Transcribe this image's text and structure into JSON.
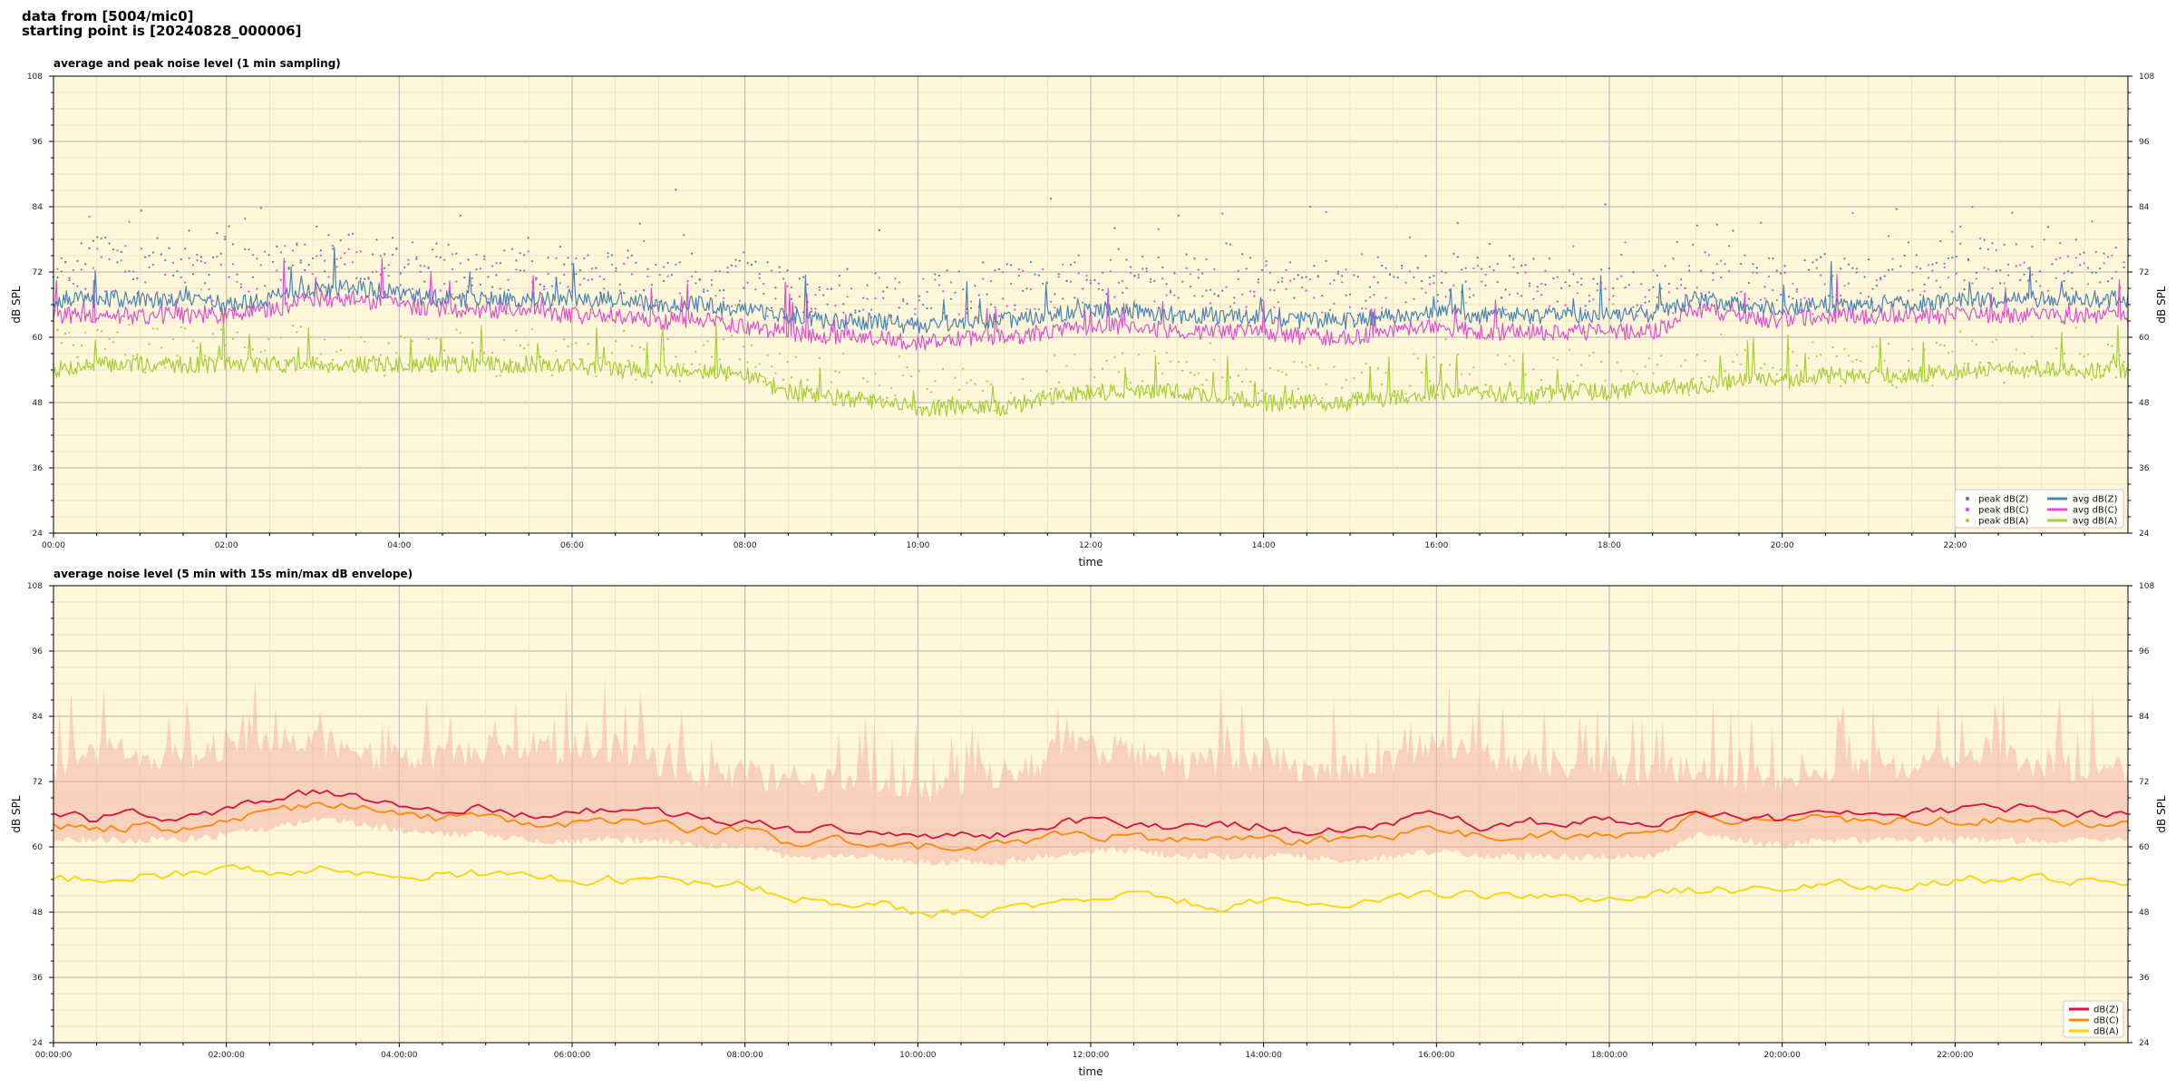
{
  "header": {
    "line1": "data from [5004/mic0]",
    "line2": "starting point is [20240828_000006]"
  },
  "colors": {
    "plot_bg": "#fff7d9",
    "grid_major": "#b3b3b3",
    "grid_minor": "#e9dfbf",
    "dBZ": "#4a84b6",
    "dBC": "#e34fd0",
    "dBA": "#a6cf38",
    "dBZ_5min": "#d6123f",
    "dBC_5min": "#ff8a00",
    "dBA_5min": "#ffd400",
    "envelope": "#f4b2a4"
  },
  "chart_data": [
    {
      "type": "line",
      "title": "average and peak noise level (1 min sampling)",
      "xlabel": "time",
      "ylabel": "dB SPL",
      "y2label": "dB SPL",
      "xlim": [
        0,
        24
      ],
      "ylim": [
        24,
        108
      ],
      "yticks": [
        24,
        36,
        48,
        60,
        72,
        84,
        96,
        108
      ],
      "xticks": [
        "00:00",
        "02:00",
        "04:00",
        "06:00",
        "08:00",
        "10:00",
        "12:00",
        "14:00",
        "16:00",
        "18:00",
        "20:00",
        "22:00"
      ],
      "grid": true,
      "legend_position": "bottom-right",
      "legend": [
        "peak dB(Z)",
        "peak dB(C)",
        "peak dB(A)",
        "avg dB(Z)",
        "avg dB(C)",
        "avg dB(A)"
      ],
      "x": [
        0,
        0.5,
        1,
        1.5,
        2,
        2.5,
        3,
        3.5,
        4,
        4.5,
        5,
        5.5,
        6,
        6.5,
        7,
        7.5,
        8,
        8.5,
        9,
        9.5,
        10,
        10.5,
        11,
        11.5,
        12,
        12.5,
        13,
        13.5,
        14,
        14.5,
        15,
        15.5,
        16,
        16.5,
        17,
        17.5,
        18,
        18.5,
        19,
        19.5,
        20,
        20.5,
        21,
        21.5,
        22,
        22.5,
        23,
        23.5,
        24
      ],
      "series": [
        {
          "name": "avg dB(Z)",
          "kind": "line",
          "values": [
            67,
            67,
            67,
            67,
            66,
            67,
            69,
            69,
            68,
            67,
            67,
            67,
            67,
            67,
            66,
            66,
            65,
            64,
            63,
            63,
            62,
            63,
            63,
            64,
            65,
            65,
            64,
            64,
            64,
            63,
            63,
            64,
            65,
            64,
            64,
            64,
            64,
            64,
            67,
            66,
            65,
            66,
            66,
            66,
            67,
            67,
            67,
            67,
            67
          ]
        },
        {
          "name": "avg dB(C)",
          "kind": "line",
          "values": [
            64,
            64,
            64,
            64,
            64,
            65,
            67,
            67,
            66,
            65,
            65,
            65,
            64,
            64,
            63,
            63,
            62,
            61,
            60,
            60,
            59,
            60,
            60,
            61,
            62,
            62,
            61,
            61,
            61,
            60,
            60,
            61,
            62,
            61,
            61,
            61,
            61,
            61,
            65,
            64,
            63,
            64,
            64,
            64,
            64,
            64,
            64,
            64,
            64
          ]
        },
        {
          "name": "avg dB(A)",
          "kind": "line",
          "values": [
            54,
            55,
            55,
            55,
            55,
            55,
            55,
            55,
            55,
            55,
            55,
            55,
            55,
            54,
            54,
            54,
            53,
            50,
            49,
            48,
            47,
            47,
            47,
            49,
            50,
            50,
            50,
            49,
            48,
            48,
            48,
            49,
            50,
            50,
            49,
            50,
            50,
            51,
            51,
            52,
            52,
            53,
            53,
            53,
            54,
            54,
            54,
            54,
            54
          ]
        },
        {
          "name": "peak dB(Z)",
          "kind": "scatter",
          "values": [
            73,
            75,
            74,
            73,
            73,
            74,
            76,
            75,
            74,
            73,
            72,
            73,
            72,
            73,
            71,
            71,
            70,
            69,
            68,
            69,
            67,
            69,
            70,
            71,
            72,
            72,
            71,
            71,
            71,
            70,
            69,
            70,
            72,
            71,
            71,
            70,
            70,
            70,
            72,
            71,
            70,
            71,
            72,
            72,
            73,
            74,
            73,
            74,
            73
          ]
        },
        {
          "name": "peak dB(C)",
          "kind": "scatter",
          "values": [
            71,
            73,
            72,
            71,
            71,
            72,
            74,
            73,
            72,
            71,
            71,
            71,
            70,
            71,
            69,
            69,
            68,
            67,
            66,
            67,
            65,
            67,
            68,
            69,
            70,
            70,
            69,
            69,
            69,
            68,
            67,
            68,
            70,
            69,
            69,
            68,
            68,
            68,
            70,
            69,
            68,
            69,
            70,
            70,
            71,
            72,
            71,
            72,
            71
          ]
        },
        {
          "name": "peak dB(A)",
          "kind": "scatter",
          "values": [
            57,
            58,
            58,
            58,
            57,
            58,
            58,
            57,
            57,
            57,
            57,
            57,
            57,
            57,
            56,
            56,
            55,
            53,
            52,
            51,
            50,
            50,
            50,
            52,
            53,
            53,
            53,
            52,
            51,
            51,
            51,
            52,
            53,
            53,
            52,
            53,
            53,
            53,
            54,
            54,
            55,
            55,
            55,
            55,
            56,
            56,
            56,
            56,
            56
          ]
        }
      ]
    },
    {
      "type": "line",
      "title": "average noise level (5 min with 15s min/max dB envelope)",
      "xlabel": "time",
      "ylabel": "dB SPL",
      "y2label": "dB SPL",
      "xlim": [
        0,
        24
      ],
      "ylim": [
        24,
        108
      ],
      "yticks": [
        24,
        36,
        48,
        60,
        72,
        84,
        96,
        108
      ],
      "xticks": [
        "00:00:00",
        "02:00:00",
        "04:00:00",
        "06:00:00",
        "08:00:00",
        "10:00:00",
        "12:00:00",
        "14:00:00",
        "16:00:00",
        "18:00:00",
        "20:00:00",
        "22:00:00"
      ],
      "grid": true,
      "legend_position": "bottom-right",
      "legend": [
        "dB(Z)",
        "dB(C)",
        "dB(A)"
      ],
      "x": [
        0,
        0.5,
        1,
        1.5,
        2,
        2.5,
        3,
        3.5,
        4,
        4.5,
        5,
        5.5,
        6,
        6.5,
        7,
        7.5,
        8,
        8.5,
        9,
        9.5,
        10,
        10.5,
        11,
        11.5,
        12,
        12.5,
        13,
        13.5,
        14,
        14.5,
        15,
        15.5,
        16,
        16.5,
        17,
        17.5,
        18,
        18.5,
        19,
        19.5,
        20,
        20.5,
        21,
        21.5,
        22,
        22.5,
        23,
        23.5,
        24
      ],
      "series": [
        {
          "name": "dB(Z)",
          "kind": "line",
          "values": [
            66,
            65,
            66,
            65,
            67,
            68,
            70,
            69,
            68,
            67,
            67,
            66,
            66,
            67,
            66,
            65,
            65,
            63,
            63,
            63,
            62,
            62,
            62,
            64,
            65,
            64,
            64,
            64,
            64,
            63,
            63,
            64,
            66,
            64,
            65,
            64,
            65,
            64,
            67,
            66,
            65,
            66,
            66,
            66,
            67,
            67,
            67,
            66,
            66
          ]
        },
        {
          "name": "dB(C)",
          "kind": "line",
          "values": [
            64,
            63,
            64,
            63,
            65,
            66,
            68,
            67,
            66,
            65,
            65,
            64,
            64,
            65,
            64,
            63,
            63,
            61,
            61,
            61,
            60,
            60,
            60,
            62,
            62,
            62,
            61,
            62,
            61,
            61,
            61,
            62,
            63,
            62,
            62,
            62,
            62,
            62,
            66,
            65,
            64,
            65,
            65,
            65,
            65,
            65,
            65,
            64,
            64
          ]
        },
        {
          "name": "dB(A)",
          "kind": "line",
          "values": [
            54,
            54,
            55,
            55,
            56,
            55,
            56,
            55,
            55,
            55,
            55,
            55,
            54,
            54,
            54,
            53,
            53,
            51,
            50,
            50,
            48,
            48,
            48,
            50,
            50,
            51,
            50,
            49,
            50,
            50,
            49,
            50,
            51,
            51,
            51,
            50,
            51,
            51,
            52,
            52,
            52,
            53,
            53,
            53,
            54,
            54,
            54,
            54,
            54
          ]
        },
        {
          "name": "envelope max",
          "kind": "band",
          "values": [
            74,
            78,
            77,
            76,
            79,
            78,
            80,
            77,
            76,
            77,
            78,
            78,
            77,
            78,
            75,
            74,
            73,
            73,
            72,
            73,
            70,
            72,
            74,
            76,
            78,
            77,
            75,
            76,
            77,
            74,
            74,
            76,
            79,
            77,
            76,
            75,
            74,
            74,
            74,
            73,
            72,
            73,
            74,
            74,
            76,
            77,
            74,
            75,
            74
          ]
        },
        {
          "name": "envelope min",
          "kind": "band",
          "values": [
            62,
            62,
            62,
            62,
            63,
            64,
            66,
            65,
            64,
            63,
            63,
            62,
            62,
            62,
            62,
            61,
            61,
            59,
            59,
            59,
            58,
            58,
            58,
            59,
            60,
            60,
            59,
            59,
            59,
            59,
            58,
            59,
            60,
            59,
            59,
            59,
            59,
            59,
            63,
            62,
            61,
            62,
            62,
            62,
            62,
            62,
            62,
            62,
            62
          ]
        }
      ]
    }
  ]
}
